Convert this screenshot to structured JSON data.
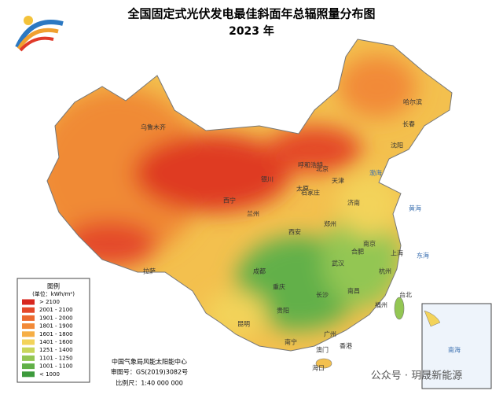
{
  "header": {
    "title": "全国固定式光伏发电最佳斜面年总辐照量分布图",
    "subtitle": "2023 年"
  },
  "legend": {
    "title": "图例",
    "unit": "(单位：kWh/m²)",
    "items": [
      {
        "label": "> 2100",
        "color": "#d7261e"
      },
      {
        "label": "2001 - 2100",
        "color": "#e4482a"
      },
      {
        "label": "1901 - 2000",
        "color": "#ec6a30"
      },
      {
        "label": "1801 - 1900",
        "color": "#f28a38"
      },
      {
        "label": "1601 - 1800",
        "color": "#f6ae45"
      },
      {
        "label": "1401 - 1600",
        "color": "#f3d35a"
      },
      {
        "label": "1251 - 1400",
        "color": "#c9d65a"
      },
      {
        "label": "1101 - 1250",
        "color": "#93c653"
      },
      {
        "label": "1001 - 1100",
        "color": "#62b048"
      },
      {
        "label": "< 1000",
        "color": "#3d9a3c"
      }
    ]
  },
  "footer": {
    "agency": "中国气象局风能太阳能中心",
    "approval": "审图号：GS(2019)3082号",
    "scale": "比例尺：1:40 000 000"
  },
  "watermark": "公众号 · 玥晟新能源",
  "cities": [
    "乌鲁木齐",
    "拉萨",
    "西宁",
    "兰州",
    "银川",
    "呼和浩特",
    "北京",
    "天津",
    "石家庄",
    "太原",
    "济南",
    "郑州",
    "西安",
    "成都",
    "重庆",
    "武汉",
    "南京",
    "上海",
    "合肥",
    "长沙",
    "南昌",
    "杭州",
    "福州",
    "贵阳",
    "昆明",
    "南宁",
    "广州",
    "香港",
    "澳门",
    "海口",
    "台北",
    "沈阳",
    "长春",
    "哈尔滨"
  ],
  "seas": [
    "渤海",
    "黄海",
    "东海",
    "南海"
  ]
}
